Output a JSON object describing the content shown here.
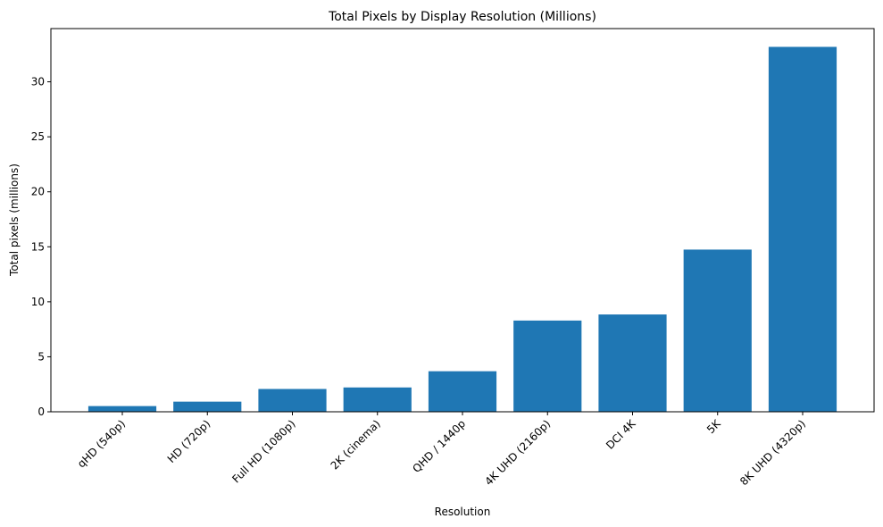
{
  "chart_data": {
    "type": "bar",
    "title": "Total Pixels by Display Resolution (Millions)",
    "xlabel": "Resolution",
    "ylabel": "Total pixels (millions)",
    "categories": [
      "qHD (540p)",
      "HD (720p)",
      "Full HD (1080p)",
      "2K (cinema)",
      "QHD / 1440p",
      "4K UHD (2160p)",
      "DCI 4K",
      "5K",
      "8K UHD (4320p)"
    ],
    "values": [
      0.5184,
      0.9216,
      2.0736,
      2.21184,
      3.6864,
      8.2944,
      8.84736,
      14.7456,
      33.1776
    ],
    "ylim": [
      0,
      34.84
    ],
    "yticks": [
      0,
      5,
      10,
      15,
      20,
      25,
      30
    ],
    "grid": false,
    "bar_color": "#1f77b4"
  }
}
